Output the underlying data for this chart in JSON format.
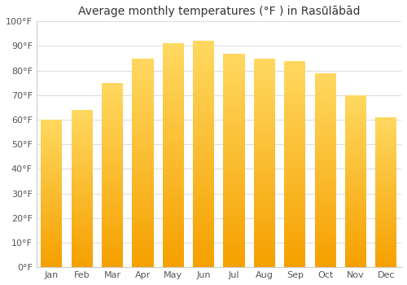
{
  "title": "Average monthly temperatures (°F ) in Rasūlābād",
  "months": [
    "Jan",
    "Feb",
    "Mar",
    "Apr",
    "May",
    "Jun",
    "Jul",
    "Aug",
    "Sep",
    "Oct",
    "Nov",
    "Dec"
  ],
  "values": [
    60,
    64,
    75,
    85,
    91,
    92,
    87,
    85,
    84,
    79,
    70,
    61
  ],
  "bar_color_bottom": "#F5A623",
  "bar_color_top": "#FFD060",
  "ylim": [
    0,
    100
  ],
  "yticks": [
    0,
    10,
    20,
    30,
    40,
    50,
    60,
    70,
    80,
    90,
    100
  ],
  "ytick_labels": [
    "0°F",
    "10°F",
    "20°F",
    "30°F",
    "40°F",
    "50°F",
    "60°F",
    "70°F",
    "80°F",
    "90°F",
    "100°F"
  ],
  "background_color": "#ffffff",
  "grid_color": "#dddddd",
  "title_fontsize": 10,
  "tick_fontsize": 8,
  "bar_width": 0.7,
  "fig_width": 5.0,
  "fig_height": 3.5,
  "dpi": 100
}
